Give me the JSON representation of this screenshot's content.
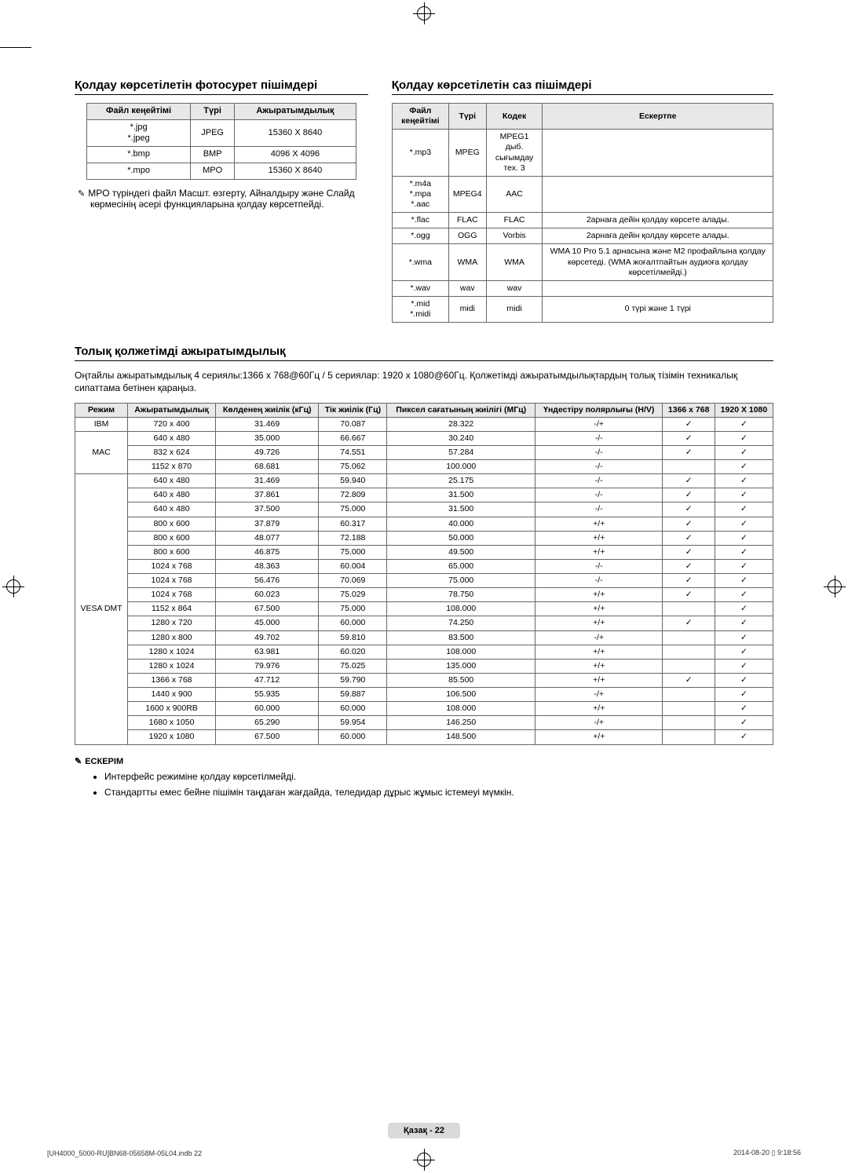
{
  "crop_color": "#000000",
  "photo_section": {
    "title": "Қолдау көрсетілетін фотосурет пішімдері",
    "columns": [
      "Файл кеңейтімі",
      "Түрі",
      "Ажыратымдылық"
    ],
    "rows": [
      [
        "*.jpg\n*.jpeg",
        "JPEG",
        "15360 X 8640"
      ],
      [
        "*.bmp",
        "BMP",
        "4096 X 4096"
      ],
      [
        "*.mpo",
        "MPO",
        "15360 X 8640"
      ]
    ],
    "note": "MPO түріндегі файл Масшт. өзгерту, Айналдыру және Слайд көрмесінің әсері функцияларына қолдау көрсетпейді."
  },
  "audio_section": {
    "title": "Қолдау көрсетілетін саз пішімдері",
    "columns": [
      "Файл кеңейтімі",
      "Түрі",
      "Кодек",
      "Ескертпе"
    ],
    "rows": [
      [
        "*.mp3",
        "MPEG",
        "MPEG1 дыб.\nсығымдау тех. 3",
        ""
      ],
      [
        "*.m4a\n*.mpa\n*.aac",
        "MPEG4",
        "AAC",
        ""
      ],
      [
        "*.flac",
        "FLAC",
        "FLAC",
        "2арнаға дейін қолдау көрсете алады."
      ],
      [
        "*.ogg",
        "OGG",
        "Vorbis",
        "2арнаға дейін қолдау көрсете алады."
      ],
      [
        "*.wma",
        "WMA",
        "WMA",
        "WMA 10 Pro 5.1 арнасына және M2 профайлына қолдау көрсетеді. (WMA жоғалтпайтын аудиоға қолдау көрсетілмейді.)"
      ],
      [
        "*.wav",
        "wav",
        "wav",
        ""
      ],
      [
        "*.mid\n*.midi",
        "midi",
        "midi",
        "0 түрі және 1 түрі"
      ]
    ]
  },
  "res_section": {
    "title": "Толық қолжетімді ажыратымдылық",
    "intro": "Оңтайлы ажыратымдылық 4 сериялы:1366 x 768@60Гц / 5 сериялар: 1920 x 1080@60Гц. Қолжетімді ажыратымдылықтардың толық тізімін техникалық сипаттама бетінен қараңыз.",
    "columns": [
      "Режим",
      "Ажыратымдылық",
      "Көлденең жиілік (кГц)",
      "Тік жиілік (Гц)",
      "Пиксел сағатының жиілігі (МГц)",
      "Үндестіру полярлығы (H/V)",
      "1366 x 768",
      "1920 X 1080"
    ],
    "groups": [
      {
        "mode": "IBM",
        "rows": [
          [
            "720 x 400",
            "31.469",
            "70.087",
            "28.322",
            "-/+",
            "✓",
            "✓"
          ]
        ]
      },
      {
        "mode": "MAC",
        "rows": [
          [
            "640 x 480",
            "35.000",
            "66.667",
            "30.240",
            "-/-",
            "✓",
            "✓"
          ],
          [
            "832 x 624",
            "49.726",
            "74.551",
            "57.284",
            "-/-",
            "✓",
            "✓"
          ],
          [
            "1152 x 870",
            "68.681",
            "75.062",
            "100.000",
            "-/-",
            "",
            "✓"
          ]
        ]
      },
      {
        "mode": "VESA DMT",
        "rows": [
          [
            "640 x 480",
            "31.469",
            "59.940",
            "25.175",
            "-/-",
            "✓",
            "✓"
          ],
          [
            "640 x 480",
            "37.861",
            "72.809",
            "31.500",
            "-/-",
            "✓",
            "✓"
          ],
          [
            "640 x 480",
            "37.500",
            "75.000",
            "31.500",
            "-/-",
            "✓",
            "✓"
          ],
          [
            "800 x 600",
            "37.879",
            "60.317",
            "40.000",
            "+/+",
            "✓",
            "✓"
          ],
          [
            "800 x 600",
            "48.077",
            "72.188",
            "50.000",
            "+/+",
            "✓",
            "✓"
          ],
          [
            "800 x 600",
            "46.875",
            "75.000",
            "49.500",
            "+/+",
            "✓",
            "✓"
          ],
          [
            "1024 x 768",
            "48.363",
            "60.004",
            "65.000",
            "-/-",
            "✓",
            "✓"
          ],
          [
            "1024 x 768",
            "56.476",
            "70.069",
            "75.000",
            "-/-",
            "✓",
            "✓"
          ],
          [
            "1024 x 768",
            "60.023",
            "75.029",
            "78.750",
            "+/+",
            "✓",
            "✓"
          ],
          [
            "1152 x 864",
            "67.500",
            "75.000",
            "108.000",
            "+/+",
            "",
            "✓"
          ],
          [
            "1280 x 720",
            "45.000",
            "60.000",
            "74.250",
            "+/+",
            "✓",
            "✓"
          ],
          [
            "1280 x 800",
            "49.702",
            "59.810",
            "83.500",
            "-/+",
            "",
            "✓"
          ],
          [
            "1280 x 1024",
            "63.981",
            "60.020",
            "108.000",
            "+/+",
            "",
            "✓"
          ],
          [
            "1280 x 1024",
            "79.976",
            "75.025",
            "135.000",
            "+/+",
            "",
            "✓"
          ],
          [
            "1366 x 768",
            "47.712",
            "59.790",
            "85.500",
            "+/+",
            "✓",
            "✓"
          ],
          [
            "1440 x 900",
            "55.935",
            "59.887",
            "106.500",
            "-/+",
            "",
            "✓"
          ],
          [
            "1600 x 900RB",
            "60.000",
            "60.000",
            "108.000",
            "+/+",
            "",
            "✓"
          ],
          [
            "1680 x 1050",
            "65.290",
            "59.954",
            "146.250",
            "-/+",
            "",
            "✓"
          ],
          [
            "1920 x 1080",
            "67.500",
            "60.000",
            "148.500",
            "+/+",
            "",
            "✓"
          ]
        ]
      }
    ],
    "footnote_head": "ЕСКЕРІМ",
    "footnotes": [
      "Интерфейс режиміне қолдау көрсетілмейді.",
      "Стандартты емес бейне пішімін таңдаған жағдайда, теледидар дұрыс жұмыс істемеуі мүмкін."
    ]
  },
  "footer": {
    "label": "Қазақ - 22"
  },
  "imprint": {
    "left": "[UH4000_5000-RU]BN68-05658M-05L04.indb   22",
    "right": "2014-08-20   ▯ 9:18:56"
  }
}
